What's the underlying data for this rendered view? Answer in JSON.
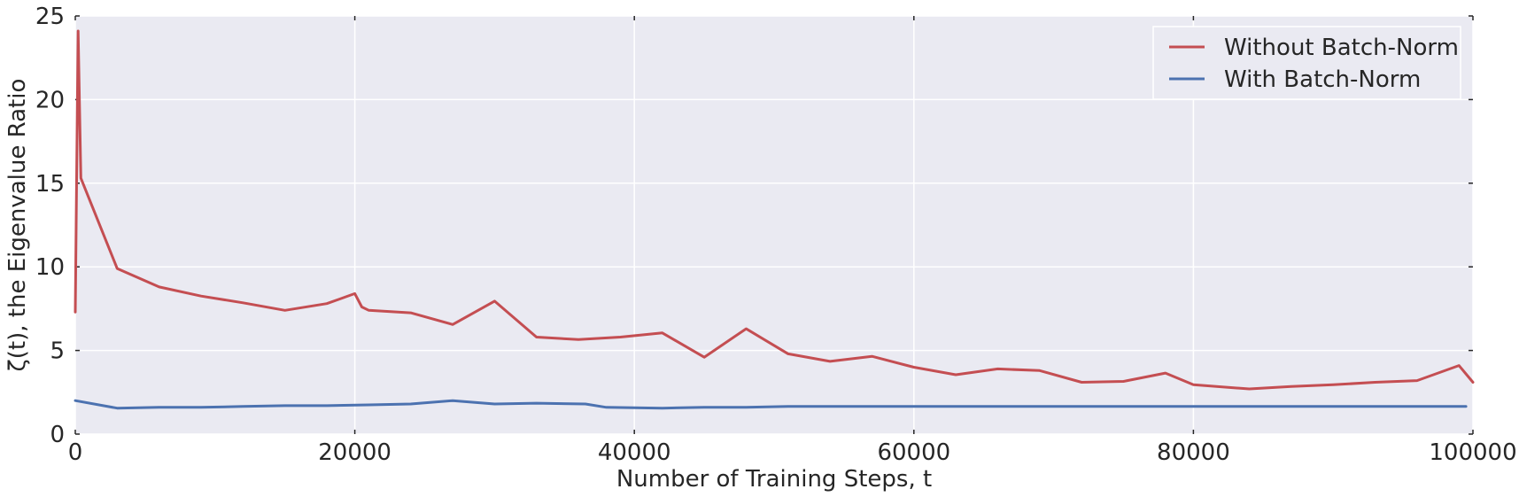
{
  "chart_data": {
    "type": "line",
    "title": "",
    "xlabel": "Number of Training Steps, t",
    "ylabel": "ζ(t), the Eigenvalue Ratio",
    "xlim": [
      0,
      100000
    ],
    "ylim": [
      0,
      25
    ],
    "x_ticks": [
      0,
      20000,
      40000,
      60000,
      80000,
      100000
    ],
    "y_ticks": [
      0,
      5,
      10,
      15,
      20,
      25
    ],
    "grid": true,
    "legend_position": "top-right",
    "series": [
      {
        "name": "Without Batch-Norm",
        "color": "#c44e52",
        "points": [
          [
            0,
            7.3
          ],
          [
            200,
            24.1
          ],
          [
            400,
            15.3
          ],
          [
            3000,
            9.9
          ],
          [
            6000,
            8.8
          ],
          [
            9000,
            8.25
          ],
          [
            12000,
            7.85
          ],
          [
            15000,
            7.4
          ],
          [
            18000,
            7.8
          ],
          [
            20000,
            8.4
          ],
          [
            20500,
            7.6
          ],
          [
            21000,
            7.4
          ],
          [
            24000,
            7.25
          ],
          [
            27000,
            6.55
          ],
          [
            30000,
            7.95
          ],
          [
            33000,
            5.8
          ],
          [
            36000,
            5.65
          ],
          [
            39000,
            5.8
          ],
          [
            42000,
            6.05
          ],
          [
            45000,
            4.6
          ],
          [
            48000,
            6.3
          ],
          [
            51000,
            4.8
          ],
          [
            54000,
            4.35
          ],
          [
            57000,
            4.65
          ],
          [
            60000,
            4.0
          ],
          [
            63000,
            3.55
          ],
          [
            66000,
            3.9
          ],
          [
            69000,
            3.8
          ],
          [
            72000,
            3.1
          ],
          [
            75000,
            3.15
          ],
          [
            78000,
            3.65
          ],
          [
            80000,
            2.95
          ],
          [
            84000,
            2.7
          ],
          [
            87000,
            2.85
          ],
          [
            90000,
            2.95
          ],
          [
            93000,
            3.1
          ],
          [
            96000,
            3.2
          ],
          [
            99000,
            4.1
          ],
          [
            100000,
            3.1
          ]
        ]
      },
      {
        "name": "With Batch-Norm",
        "color": "#4c72b0",
        "points": [
          [
            0,
            2.0
          ],
          [
            3000,
            1.55
          ],
          [
            6000,
            1.6
          ],
          [
            9000,
            1.6
          ],
          [
            12000,
            1.65
          ],
          [
            15000,
            1.7
          ],
          [
            18000,
            1.7
          ],
          [
            21000,
            1.75
          ],
          [
            24000,
            1.8
          ],
          [
            27000,
            2.0
          ],
          [
            30000,
            1.8
          ],
          [
            33000,
            1.85
          ],
          [
            36500,
            1.8
          ],
          [
            38000,
            1.6
          ],
          [
            42000,
            1.55
          ],
          [
            45000,
            1.6
          ],
          [
            48000,
            1.6
          ],
          [
            51000,
            1.65
          ],
          [
            54000,
            1.65
          ],
          [
            60000,
            1.65
          ],
          [
            66000,
            1.65
          ],
          [
            72000,
            1.65
          ],
          [
            80000,
            1.65
          ],
          [
            90000,
            1.65
          ],
          [
            99500,
            1.65
          ]
        ]
      }
    ]
  }
}
